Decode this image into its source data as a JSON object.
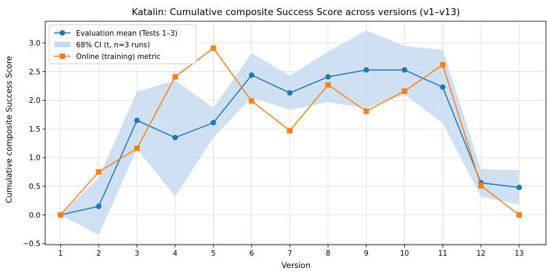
{
  "chart_data": {
    "type": "line",
    "title": "Katalin: Cumulative composite Success Score across versions (v1–v13)",
    "xlabel": "Version",
    "ylabel": "Cumulative composite Success Score",
    "x": [
      1,
      2,
      3,
      4,
      5,
      6,
      7,
      8,
      9,
      10,
      11,
      12,
      13
    ],
    "xlim": [
      0.6,
      13.7
    ],
    "ylim": [
      -0.52,
      3.38
    ],
    "yticks": [
      -0.5,
      0.0,
      0.5,
      1.0,
      1.5,
      2.0,
      2.5,
      3.0
    ],
    "ytick_labels": [
      "−0.5",
      "0.0",
      "0.5",
      "1.0",
      "1.5",
      "2.0",
      "2.5",
      "3.0"
    ],
    "xtick_labels": [
      "1",
      "2",
      "3",
      "4",
      "5",
      "6",
      "7",
      "8",
      "9",
      "10",
      "11",
      "12",
      "13"
    ],
    "grid": true,
    "legend_position": "top-left",
    "series": [
      {
        "name": "Evaluation mean (Tests 1–3)",
        "kind": "line",
        "marker": "circle",
        "color": "#1f77b4",
        "values": [
          0.0,
          0.15,
          1.65,
          1.35,
          1.61,
          2.44,
          2.13,
          2.41,
          2.53,
          2.53,
          2.23,
          0.56,
          0.48
        ]
      },
      {
        "name": "68% CI (t, n=3 runs)",
        "kind": "band",
        "color": "#c6dbef",
        "lower": [
          0.0,
          -0.35,
          1.15,
          0.32,
          1.35,
          2.05,
          1.83,
          1.97,
          1.86,
          2.1,
          1.6,
          0.32,
          0.18
        ],
        "upper": [
          0.0,
          0.65,
          2.15,
          2.35,
          1.87,
          2.82,
          2.43,
          2.85,
          3.22,
          2.95,
          2.88,
          0.8,
          0.78
        ]
      },
      {
        "name": "Online (training) metric",
        "kind": "line",
        "marker": "square",
        "color": "#ff7f0e",
        "values": [
          0.0,
          0.75,
          1.16,
          2.41,
          2.91,
          1.99,
          1.47,
          2.27,
          1.81,
          2.16,
          2.62,
          0.51,
          0.0
        ]
      }
    ]
  }
}
